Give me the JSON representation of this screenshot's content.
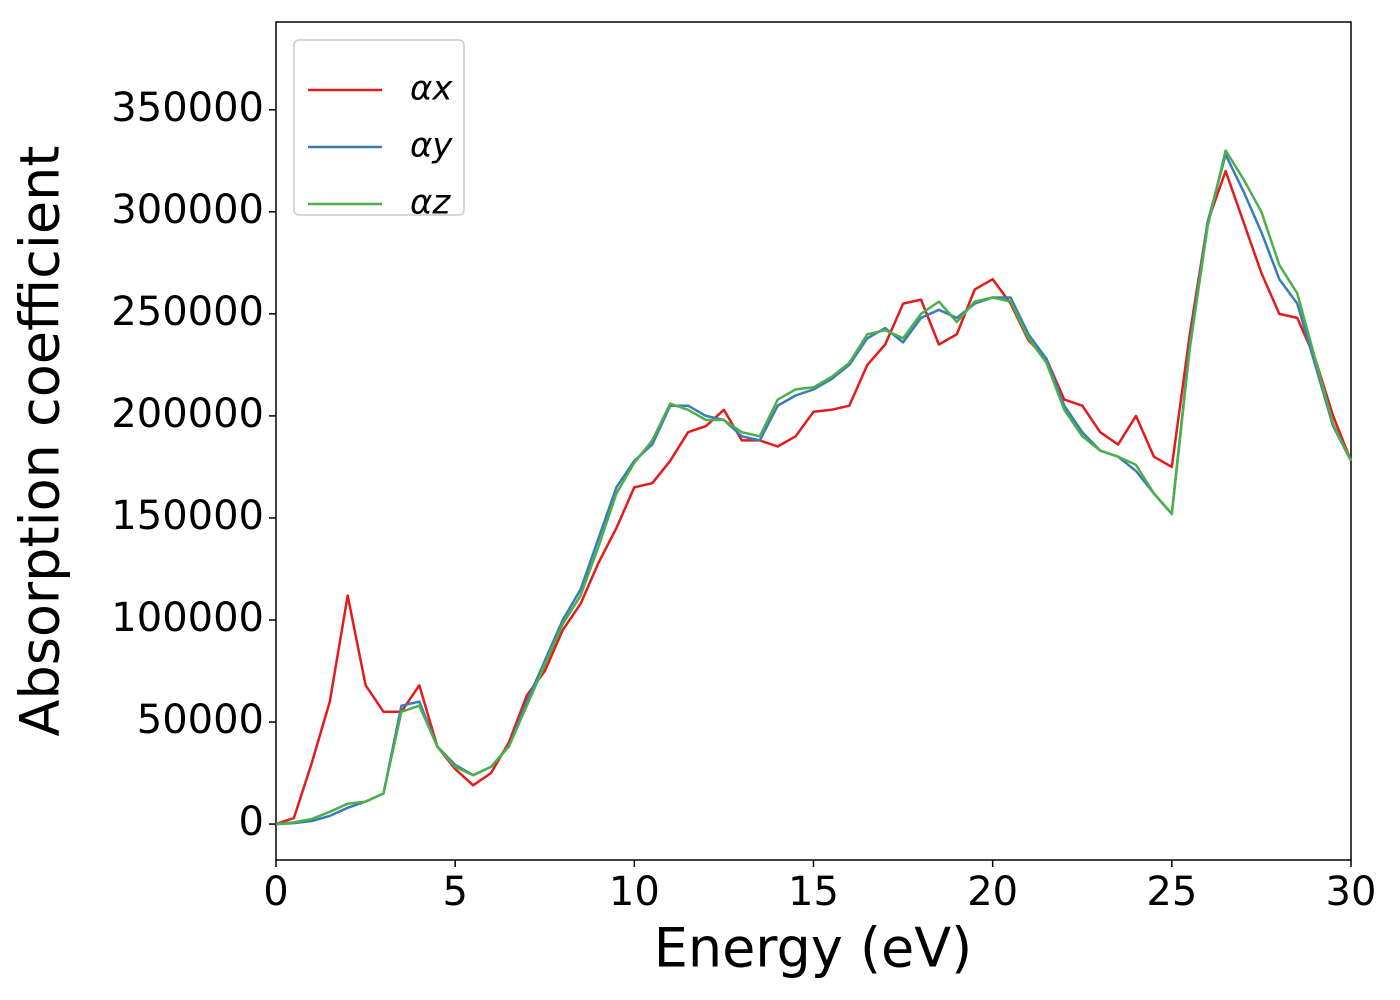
{
  "chart_data": {
    "type": "line",
    "xlabel": "Energy (eV)",
    "ylabel": "Absorption coefficient",
    "x": [
      0,
      0.5,
      1,
      1.5,
      2,
      2.5,
      3,
      3.5,
      4,
      4.5,
      5,
      5.5,
      6,
      6.5,
      7,
      7.5,
      8,
      8.5,
      9,
      9.5,
      10,
      10.5,
      11,
      11.5,
      12,
      12.5,
      13,
      13.5,
      14,
      14.5,
      15,
      15.5,
      16,
      16.5,
      17,
      17.5,
      18,
      18.5,
      19,
      19.5,
      20,
      20.5,
      21,
      21.5,
      22,
      22.5,
      23,
      23.5,
      24,
      24.5,
      25,
      25.5,
      26,
      26.5,
      27,
      27.5,
      28,
      28.5,
      29,
      29.5,
      30
    ],
    "series": [
      {
        "name": "αx",
        "color": "#e41a1c",
        "values": [
          0,
          3000,
          30000,
          60000,
          112000,
          68000,
          55000,
          55000,
          68000,
          38000,
          27000,
          19000,
          25000,
          40000,
          63000,
          75000,
          95000,
          108000,
          128000,
          145000,
          165000,
          167000,
          178000,
          192000,
          195000,
          203000,
          188000,
          188000,
          185000,
          190000,
          202000,
          203000,
          205000,
          225000,
          235000,
          255000,
          257000,
          235000,
          240000,
          262000,
          267000,
          255000,
          237000,
          228000,
          208000,
          205000,
          192000,
          186000,
          200000,
          180000,
          175000,
          240000,
          295000,
          320000,
          295000,
          270000,
          250000,
          248000,
          228000,
          200000,
          178000
        ]
      },
      {
        "name": "αy",
        "color": "#377eb8",
        "values": [
          0,
          500,
          1500,
          4000,
          8000,
          11000,
          15000,
          58000,
          60000,
          38000,
          29000,
          24000,
          28000,
          38000,
          60000,
          80000,
          100000,
          115000,
          140000,
          165000,
          178000,
          186000,
          205000,
          205000,
          200000,
          198000,
          190000,
          188000,
          205000,
          210000,
          213000,
          218000,
          225000,
          238000,
          243000,
          236000,
          248000,
          252000,
          248000,
          255000,
          258000,
          258000,
          240000,
          228000,
          205000,
          192000,
          183000,
          180000,
          173000,
          162000,
          152000,
          235000,
          295000,
          328000,
          310000,
          290000,
          267000,
          255000,
          225000,
          195000,
          178000
        ]
      },
      {
        "name": "αz",
        "color": "#4daf4a",
        "values": [
          0,
          800,
          2500,
          6000,
          10000,
          11000,
          15000,
          55000,
          58000,
          38000,
          28000,
          24000,
          28000,
          38000,
          58000,
          78000,
          98000,
          112000,
          136000,
          162000,
          177000,
          188000,
          206000,
          203000,
          198000,
          198000,
          192000,
          190000,
          208000,
          213000,
          214000,
          219000,
          226000,
          240000,
          242000,
          238000,
          250000,
          256000,
          246000,
          256000,
          258000,
          256000,
          238000,
          226000,
          203000,
          190000,
          183000,
          180000,
          176000,
          162000,
          152000,
          233000,
          293000,
          330000,
          316000,
          300000,
          274000,
          260000,
          228000,
          196000,
          178000
        ]
      }
    ],
    "xlim": [
      0,
      30
    ],
    "xticks": [
      0,
      5,
      10,
      15,
      20,
      25,
      30
    ],
    "ylim": [
      -17600,
      393000
    ],
    "yticks": [
      0,
      50000,
      100000,
      150000,
      200000,
      250000,
      300000,
      350000
    ],
    "legend": "upper left"
  }
}
